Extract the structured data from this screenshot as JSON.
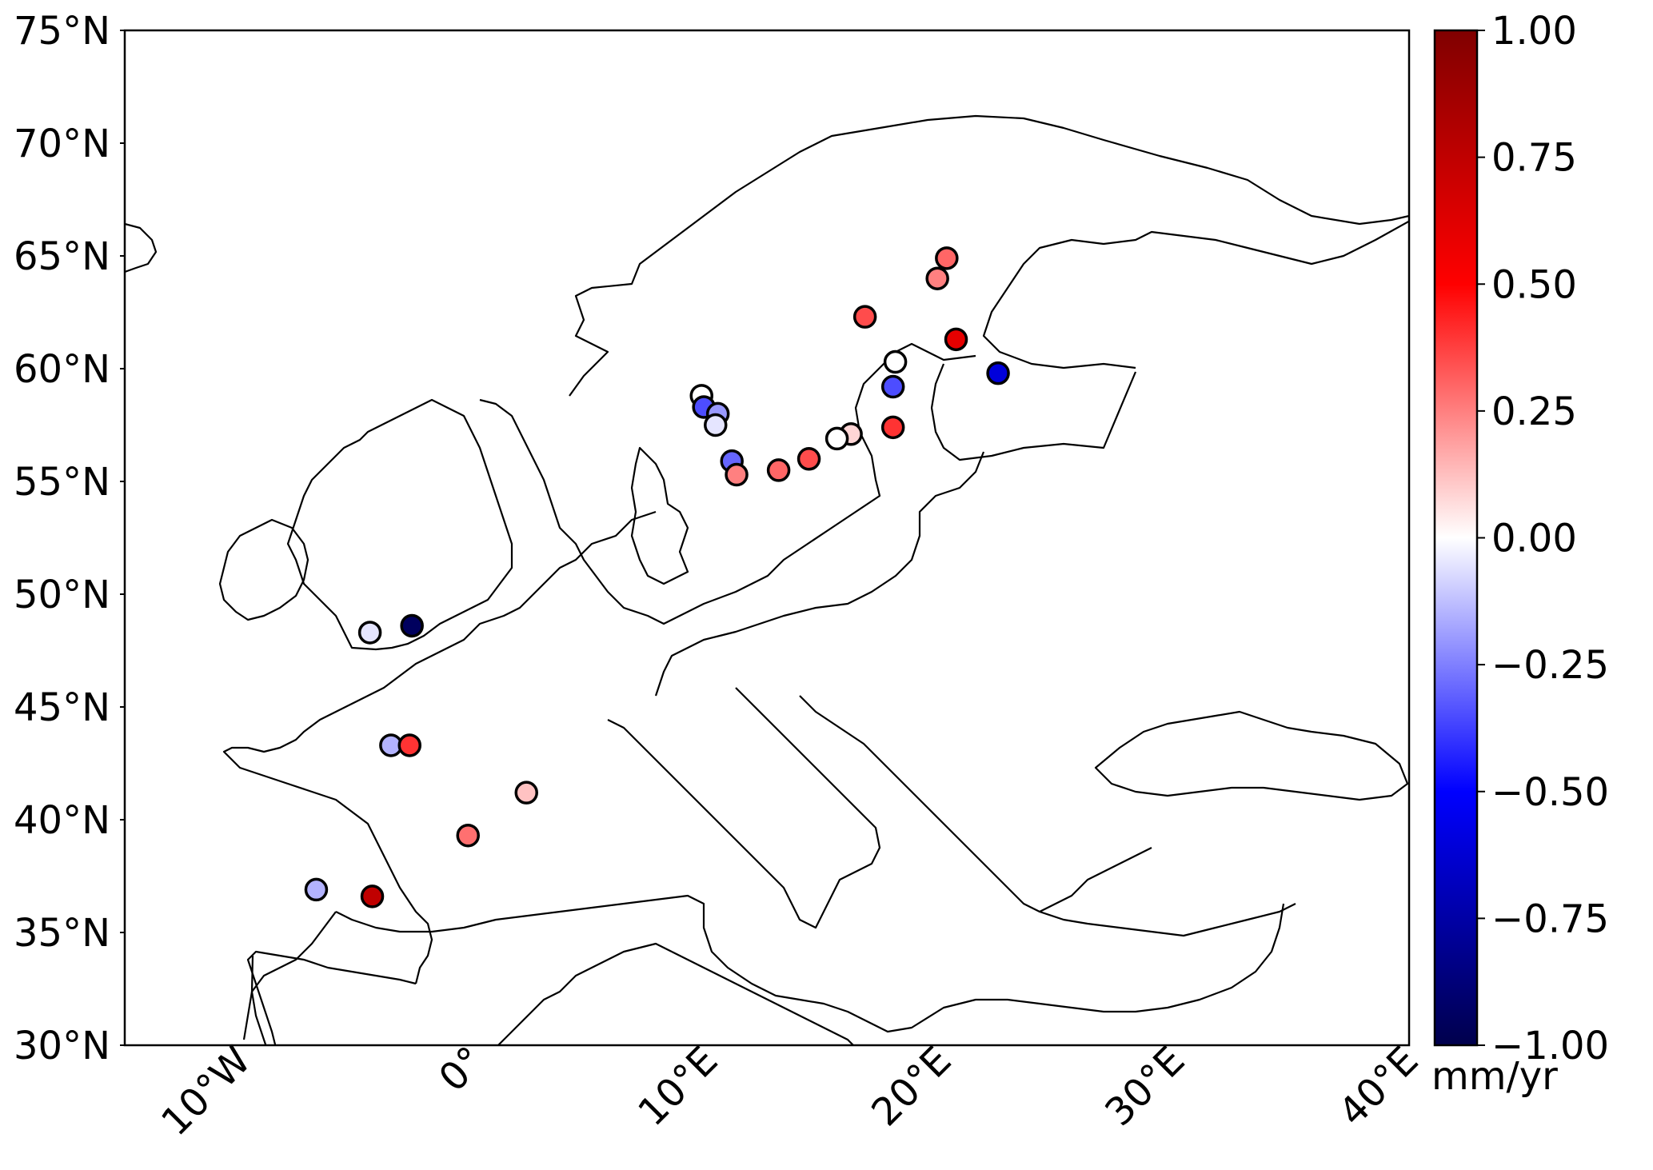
{
  "map": {
    "lat_ticks": [
      "75°N",
      "70°N",
      "65°N",
      "60°N",
      "55°N",
      "50°N",
      "45°N",
      "40°N",
      "35°N",
      "30°N"
    ],
    "lon_ticks": [
      "10°W",
      "0°",
      "10°E",
      "20°E",
      "30°E",
      "40°E"
    ],
    "lat_values": [
      75,
      70,
      65,
      60,
      55,
      50,
      45,
      40,
      35,
      30
    ],
    "lon_values": [
      -10,
      0,
      10,
      20,
      30,
      40
    ],
    "extent": {
      "lon": [
        -15,
        40
      ],
      "lat": [
        30,
        75
      ]
    }
  },
  "colorbar": {
    "unit": "mm/yr",
    "ticks": [
      "1.00",
      "0.75",
      "0.50",
      "0.25",
      "0.00",
      "−0.25",
      "−0.50",
      "−0.75",
      "−1.00"
    ],
    "tick_values": [
      1.0,
      0.75,
      0.5,
      0.25,
      0.0,
      -0.25,
      -0.5,
      -0.75,
      -1.0
    ],
    "range": [
      -1.0,
      1.0
    ],
    "colormap": "seismic"
  },
  "chart_data": {
    "type": "scatter",
    "xlabel": "",
    "ylabel": "",
    "points": [
      {
        "lon": 20.2,
        "lat": 64.9,
        "value": 0.3
      },
      {
        "lon": 19.8,
        "lat": 64.0,
        "value": 0.25
      },
      {
        "lon": 16.7,
        "lat": 62.3,
        "value": 0.35
      },
      {
        "lon": 20.6,
        "lat": 61.3,
        "value": 0.6
      },
      {
        "lon": 18.0,
        "lat": 60.3,
        "value": 0.0
      },
      {
        "lon": 22.4,
        "lat": 59.8,
        "value": -0.6
      },
      {
        "lon": 17.9,
        "lat": 59.2,
        "value": -0.35
      },
      {
        "lon": 9.7,
        "lat": 58.8,
        "value": 0.0
      },
      {
        "lon": 9.8,
        "lat": 58.3,
        "value": -0.35
      },
      {
        "lon": 10.4,
        "lat": 58.0,
        "value": -0.2
      },
      {
        "lon": 10.3,
        "lat": 57.5,
        "value": -0.05
      },
      {
        "lon": 17.9,
        "lat": 57.4,
        "value": 0.4
      },
      {
        "lon": 16.1,
        "lat": 57.1,
        "value": 0.08
      },
      {
        "lon": 15.5,
        "lat": 56.9,
        "value": 0.0
      },
      {
        "lon": 14.3,
        "lat": 56.0,
        "value": 0.35
      },
      {
        "lon": 11.0,
        "lat": 55.9,
        "value": -0.3
      },
      {
        "lon": 13.0,
        "lat": 55.5,
        "value": 0.3
      },
      {
        "lon": 11.2,
        "lat": 55.3,
        "value": 0.25
      },
      {
        "lon": -2.7,
        "lat": 48.6,
        "value": -0.95
      },
      {
        "lon": -4.5,
        "lat": 48.3,
        "value": -0.05
      },
      {
        "lon": -3.6,
        "lat": 43.3,
        "value": -0.15
      },
      {
        "lon": -2.8,
        "lat": 43.3,
        "value": 0.4
      },
      {
        "lon": 2.2,
        "lat": 41.2,
        "value": 0.12
      },
      {
        "lon": -0.3,
        "lat": 39.3,
        "value": 0.28
      },
      {
        "lon": -6.8,
        "lat": 36.9,
        "value": -0.15
      },
      {
        "lon": -4.4,
        "lat": 36.6,
        "value": 0.75
      }
    ]
  }
}
